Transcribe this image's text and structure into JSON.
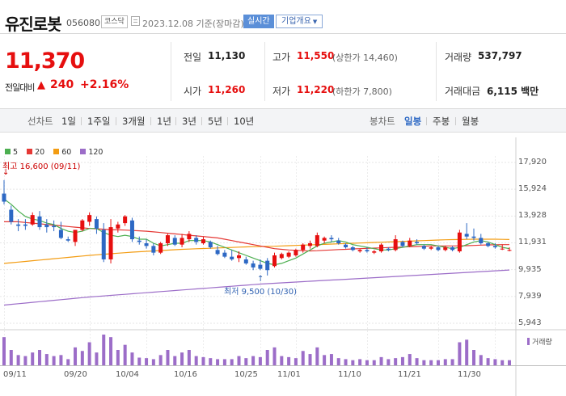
{
  "header": {
    "name": "유진로봇",
    "code": "056080",
    "market": "코스닥",
    "date": "2023.12.08",
    "basis": "기준(장마감)",
    "realtime_label": "실시간",
    "company_label": "기업개요"
  },
  "summary": {
    "price": "11,370",
    "change_label": "전일대비",
    "change_value": "240",
    "change_pct": "+2.16%",
    "prev_close_label": "전일",
    "prev_close": "11,130",
    "open_label": "시가",
    "open": "11,260",
    "high_label": "고가",
    "high": "11,550",
    "upper_limit": "(상한가 14,460)",
    "low_label": "저가",
    "low": "11,220",
    "lower_limit": "(하한가 7,800)",
    "volume_label": "거래량",
    "volume": "537,797",
    "amount_label": "거래대금",
    "amount": "6,115 백만"
  },
  "tabs": {
    "line_label": "선차트",
    "line_items": [
      "1일",
      "1주일",
      "3개월",
      "1년",
      "3년",
      "5년",
      "10년"
    ],
    "candle_label": "봉차트",
    "candle_items": [
      "일봉",
      "주봉",
      "월봉"
    ],
    "active_candle": "일봉"
  },
  "colors": {
    "up": "#e60f0f",
    "down": "#2d68c4",
    "ma5": "#4caf50",
    "ma20": "#e53935",
    "ma60": "#f39c12",
    "ma120": "#9c6dc8",
    "volume": "#9c6dc8"
  },
  "chart_data": {
    "type": "candlestick",
    "legend": [
      {
        "name": "5",
        "color": "#4caf50"
      },
      {
        "name": "20",
        "color": "#e53935"
      },
      {
        "name": "60",
        "color": "#f39c12"
      },
      {
        "name": "120",
        "color": "#9c6dc8"
      }
    ],
    "y_ticks": [
      "17,920",
      "15,924",
      "13,928",
      "11,931",
      "9,935",
      "7,939",
      "5,943"
    ],
    "ylim": [
      5943,
      17920
    ],
    "x_ticks": [
      "09/11",
      "09/20",
      "10/04",
      "10/16",
      "10/25",
      "11/01",
      "11/10",
      "11/21",
      "11/30"
    ],
    "high_annotation": "최고 16,600 (09/11)",
    "low_annotation": "최저 9,500 (10/30)",
    "volume_label": "거래량",
    "candles": [
      {
        "o": 15600,
        "h": 16600,
        "l": 14800,
        "c": 15000
      },
      {
        "o": 14400,
        "h": 14700,
        "l": 13300,
        "c": 13500
      },
      {
        "o": 13300,
        "h": 13700,
        "l": 12800,
        "c": 13200
      },
      {
        "o": 13300,
        "h": 13700,
        "l": 12900,
        "c": 13200
      },
      {
        "o": 13300,
        "h": 14200,
        "l": 13200,
        "c": 14000
      },
      {
        "o": 13900,
        "h": 14300,
        "l": 12900,
        "c": 13100
      },
      {
        "o": 13300,
        "h": 13700,
        "l": 12700,
        "c": 13100
      },
      {
        "o": 13200,
        "h": 13600,
        "l": 12800,
        "c": 13100
      },
      {
        "o": 12900,
        "h": 13500,
        "l": 12200,
        "c": 12300
      },
      {
        "o": 12200,
        "h": 12400,
        "l": 12000,
        "c": 12100
      },
      {
        "o": 12000,
        "h": 12900,
        "l": 11700,
        "c": 12900
      },
      {
        "o": 12900,
        "h": 13700,
        "l": 12800,
        "c": 13600
      },
      {
        "o": 13500,
        "h": 14200,
        "l": 13200,
        "c": 14000
      },
      {
        "o": 13700,
        "h": 13900,
        "l": 12600,
        "c": 13000
      },
      {
        "o": 12900,
        "h": 13400,
        "l": 10500,
        "c": 10700
      },
      {
        "o": 10700,
        "h": 13700,
        "l": 10400,
        "c": 13100
      },
      {
        "o": 13000,
        "h": 13500,
        "l": 12700,
        "c": 13300
      },
      {
        "o": 13400,
        "h": 14000,
        "l": 13200,
        "c": 13900
      },
      {
        "o": 13600,
        "h": 13800,
        "l": 12000,
        "c": 12200
      },
      {
        "o": 12100,
        "h": 12400,
        "l": 11800,
        "c": 12000
      },
      {
        "o": 11900,
        "h": 12200,
        "l": 11500,
        "c": 11700
      },
      {
        "o": 11700,
        "h": 11900,
        "l": 11000,
        "c": 11200
      },
      {
        "o": 11200,
        "h": 12000,
        "l": 11100,
        "c": 11900
      },
      {
        "o": 11900,
        "h": 12600,
        "l": 11700,
        "c": 12500
      },
      {
        "o": 12300,
        "h": 12500,
        "l": 11700,
        "c": 11800
      },
      {
        "o": 11800,
        "h": 12600,
        "l": 11600,
        "c": 12300
      },
      {
        "o": 12200,
        "h": 12800,
        "l": 12000,
        "c": 12600
      },
      {
        "o": 12300,
        "h": 12500,
        "l": 11800,
        "c": 12000
      },
      {
        "o": 11900,
        "h": 12400,
        "l": 11800,
        "c": 12200
      },
      {
        "o": 12000,
        "h": 12100,
        "l": 11500,
        "c": 11600
      },
      {
        "o": 11400,
        "h": 11700,
        "l": 11000,
        "c": 11100
      },
      {
        "o": 11200,
        "h": 11400,
        "l": 10800,
        "c": 10900
      },
      {
        "o": 10900,
        "h": 11400,
        "l": 10600,
        "c": 10700
      },
      {
        "o": 10800,
        "h": 11300,
        "l": 10500,
        "c": 11000
      },
      {
        "o": 10700,
        "h": 10900,
        "l": 10300,
        "c": 10400
      },
      {
        "o": 10400,
        "h": 10600,
        "l": 9900,
        "c": 10100
      },
      {
        "o": 10300,
        "h": 10700,
        "l": 9900,
        "c": 10000
      },
      {
        "o": 10600,
        "h": 10800,
        "l": 9500,
        "c": 9900
      },
      {
        "o": 10200,
        "h": 11200,
        "l": 10100,
        "c": 11000
      },
      {
        "o": 10800,
        "h": 11200,
        "l": 10700,
        "c": 11100
      },
      {
        "o": 10900,
        "h": 11300,
        "l": 10800,
        "c": 11200
      },
      {
        "o": 11000,
        "h": 11500,
        "l": 10900,
        "c": 11400
      },
      {
        "o": 11400,
        "h": 11900,
        "l": 11200,
        "c": 11800
      },
      {
        "o": 11700,
        "h": 12100,
        "l": 11500,
        "c": 11900
      },
      {
        "o": 11700,
        "h": 12700,
        "l": 11600,
        "c": 12500
      },
      {
        "o": 12100,
        "h": 12400,
        "l": 11900,
        "c": 12300
      },
      {
        "o": 12300,
        "h": 12500,
        "l": 12000,
        "c": 12200
      },
      {
        "o": 12100,
        "h": 12300,
        "l": 11800,
        "c": 11900
      },
      {
        "o": 11800,
        "h": 11900,
        "l": 11500,
        "c": 11600
      },
      {
        "o": 11600,
        "h": 11700,
        "l": 11300,
        "c": 11400
      },
      {
        "o": 11300,
        "h": 11500,
        "l": 11200,
        "c": 11400
      },
      {
        "o": 11400,
        "h": 11600,
        "l": 11200,
        "c": 11300
      },
      {
        "o": 11200,
        "h": 11400,
        "l": 11100,
        "c": 11300
      },
      {
        "o": 11300,
        "h": 11900,
        "l": 11200,
        "c": 11800
      },
      {
        "o": 11500,
        "h": 11600,
        "l": 11300,
        "c": 11400
      },
      {
        "o": 11400,
        "h": 12500,
        "l": 11300,
        "c": 12200
      },
      {
        "o": 12000,
        "h": 12100,
        "l": 11600,
        "c": 11700
      },
      {
        "o": 11700,
        "h": 12300,
        "l": 11600,
        "c": 12100
      },
      {
        "o": 12000,
        "h": 12200,
        "l": 11800,
        "c": 11900
      },
      {
        "o": 11700,
        "h": 11800,
        "l": 11400,
        "c": 11500
      },
      {
        "o": 11500,
        "h": 11700,
        "l": 11400,
        "c": 11600
      },
      {
        "o": 11600,
        "h": 11700,
        "l": 11300,
        "c": 11400
      },
      {
        "o": 11400,
        "h": 11700,
        "l": 11300,
        "c": 11600
      },
      {
        "o": 11600,
        "h": 11700,
        "l": 11300,
        "c": 11400
      },
      {
        "o": 11300,
        "h": 12900,
        "l": 11200,
        "c": 12700
      },
      {
        "o": 12600,
        "h": 13400,
        "l": 12200,
        "c": 12400
      },
      {
        "o": 12400,
        "h": 13000,
        "l": 12100,
        "c": 12300
      },
      {
        "o": 12300,
        "h": 12600,
        "l": 11800,
        "c": 11900
      },
      {
        "o": 11900,
        "h": 12000,
        "l": 11600,
        "c": 11700
      },
      {
        "o": 11700,
        "h": 11900,
        "l": 11500,
        "c": 11600
      },
      {
        "o": 11500,
        "h": 11800,
        "l": 11400,
        "c": 11500
      },
      {
        "o": 11400,
        "h": 11600,
        "l": 11300,
        "c": 11400
      }
    ],
    "ma5": [
      15200,
      14800,
      14300,
      13900,
      13700,
      13600,
      13400,
      13300,
      13000,
      12800,
      12700,
      12800,
      13000,
      13000,
      12700,
      12500,
      12400,
      12500,
      12400,
      12200,
      12200,
      11900,
      11700,
      11800,
      11900,
      11900,
      12100,
      12100,
      12100,
      12000,
      11800,
      11600,
      11400,
      11200,
      11000,
      10800,
      10600,
      10400,
      10300,
      10400,
      10600,
      10800,
      11100,
      11400,
      11700,
      11900,
      12000,
      12100,
      12000,
      11800,
      11700,
      11600,
      11500,
      11400,
      11400,
      11500,
      11600,
      11700,
      11800,
      11800,
      11800,
      11700,
      11600,
      11500,
      11600,
      11800,
      12000,
      12100,
      12000,
      11800,
      11600,
      11500
    ],
    "ma20": [
      13500,
      13500,
      13500,
      13450,
      13400,
      13350,
      13300,
      13250,
      13200,
      13150,
      13100,
      13050,
      13000,
      12980,
      12950,
      12900,
      12900,
      12880,
      12850,
      12830,
      12800,
      12750,
      12700,
      12650,
      12600,
      12550,
      12500,
      12450,
      12400,
      12350,
      12300,
      12200,
      12100,
      12000,
      11900,
      11800,
      11700,
      11600,
      11500,
      11450,
      11400,
      11380,
      11350,
      11330,
      11350,
      11380,
      11400,
      11430,
      11450,
      11480,
      11500,
      11520,
      11540,
      11560,
      11580,
      11600,
      11620,
      11640,
      11660,
      11680,
      11700,
      11700,
      11700,
      11700,
      11710,
      11720,
      11740,
      11760,
      11780,
      11790,
      11800,
      11800
    ],
    "ma60": [
      10400,
      10450,
      10500,
      10550,
      10600,
      10650,
      10700,
      10750,
      10800,
      10850,
      10900,
      10950,
      11000,
      11040,
      11080,
      11120,
      11160,
      11200,
      11240,
      11270,
      11300,
      11330,
      11360,
      11390,
      11420,
      11450,
      11470,
      11490,
      11510,
      11530,
      11550,
      11570,
      11590,
      11610,
      11630,
      11650,
      11660,
      11670,
      11680,
      11700,
      11720,
      11740,
      11760,
      11780,
      11800,
      11820,
      11840,
      11860,
      11880,
      11900,
      11920,
      11940,
      11960,
      11980,
      12000,
      12020,
      12040,
      12060,
      12080,
      12100,
      12120,
      12140,
      12160,
      12170,
      12180,
      12190,
      12200,
      12200,
      12200,
      12200,
      12190,
      12180
    ],
    "ma120": [
      7300,
      7350,
      7400,
      7450,
      7500,
      7550,
      7600,
      7650,
      7700,
      7750,
      7800,
      7850,
      7900,
      7940,
      7980,
      8020,
      8060,
      8100,
      8140,
      8180,
      8220,
      8260,
      8300,
      8340,
      8380,
      8420,
      8460,
      8500,
      8540,
      8580,
      8620,
      8660,
      8700,
      8740,
      8780,
      8820,
      8860,
      8890,
      8920,
      8950,
      8980,
      9010,
      9040,
      9070,
      9100,
      9130,
      9160,
      9190,
      9220,
      9250,
      9280,
      9310,
      9340,
      9370,
      9400,
      9430,
      9460,
      9490,
      9520,
      9550,
      9580,
      9610,
      9640,
      9670,
      9700,
      9730,
      9760,
      9790,
      9820,
      9850,
      9880,
      9910
    ],
    "volume": [
      55,
      30,
      20,
      18,
      25,
      30,
      22,
      18,
      20,
      12,
      35,
      28,
      45,
      25,
      60,
      55,
      30,
      40,
      25,
      15,
      14,
      12,
      20,
      30,
      18,
      25,
      30,
      18,
      16,
      14,
      12,
      12,
      12,
      18,
      14,
      18,
      16,
      30,
      35,
      18,
      16,
      14,
      28,
      22,
      35,
      20,
      22,
      14,
      12,
      10,
      12,
      10,
      10,
      16,
      12,
      14,
      16,
      22,
      14,
      10,
      10,
      10,
      12,
      12,
      45,
      50,
      30,
      20,
      14,
      12,
      10,
      10
    ]
  }
}
